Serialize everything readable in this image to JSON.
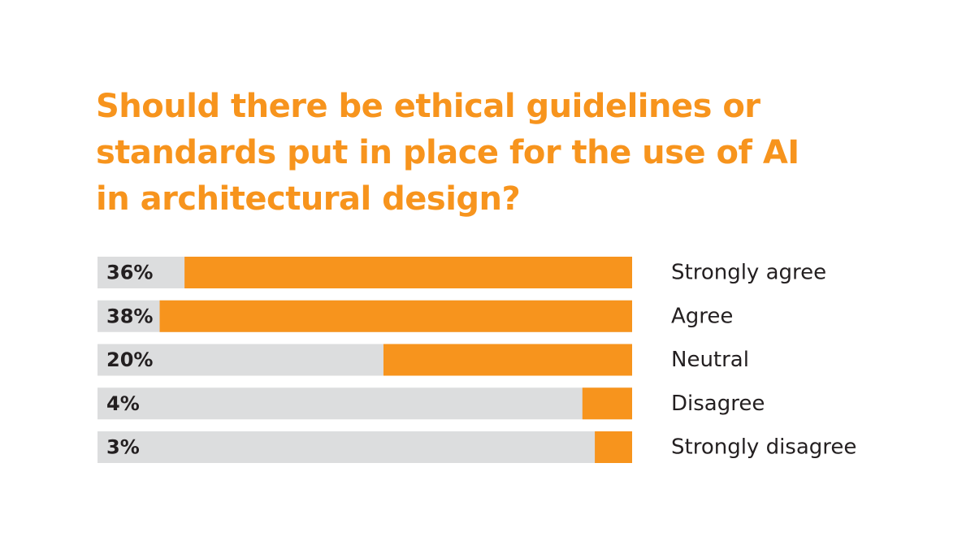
{
  "title_lines": [
    "Should there be ethical guidelines or",
    "standards put in place for the use of AI",
    "in architectural design?"
  ],
  "colors": {
    "accent": "#F7941D",
    "track": "#DCDDDE",
    "text": "#231F20",
    "background": "#FFFFFF"
  },
  "chart_data": {
    "type": "bar",
    "orientation": "horizontal",
    "title": "Should there be ethical guidelines or standards put in place for the use of AI in architectural design?",
    "categories": [
      "Strongly agree",
      "Agree",
      "Neutral",
      "Disagree",
      "Strongly disagree"
    ],
    "values": [
      36,
      38,
      20,
      4,
      3
    ],
    "value_labels": [
      "36%",
      "38%",
      "20%",
      "4%",
      "3%"
    ],
    "value_unit": "%",
    "xlim": [
      0,
      43
    ],
    "grid": false,
    "legend": "none"
  }
}
